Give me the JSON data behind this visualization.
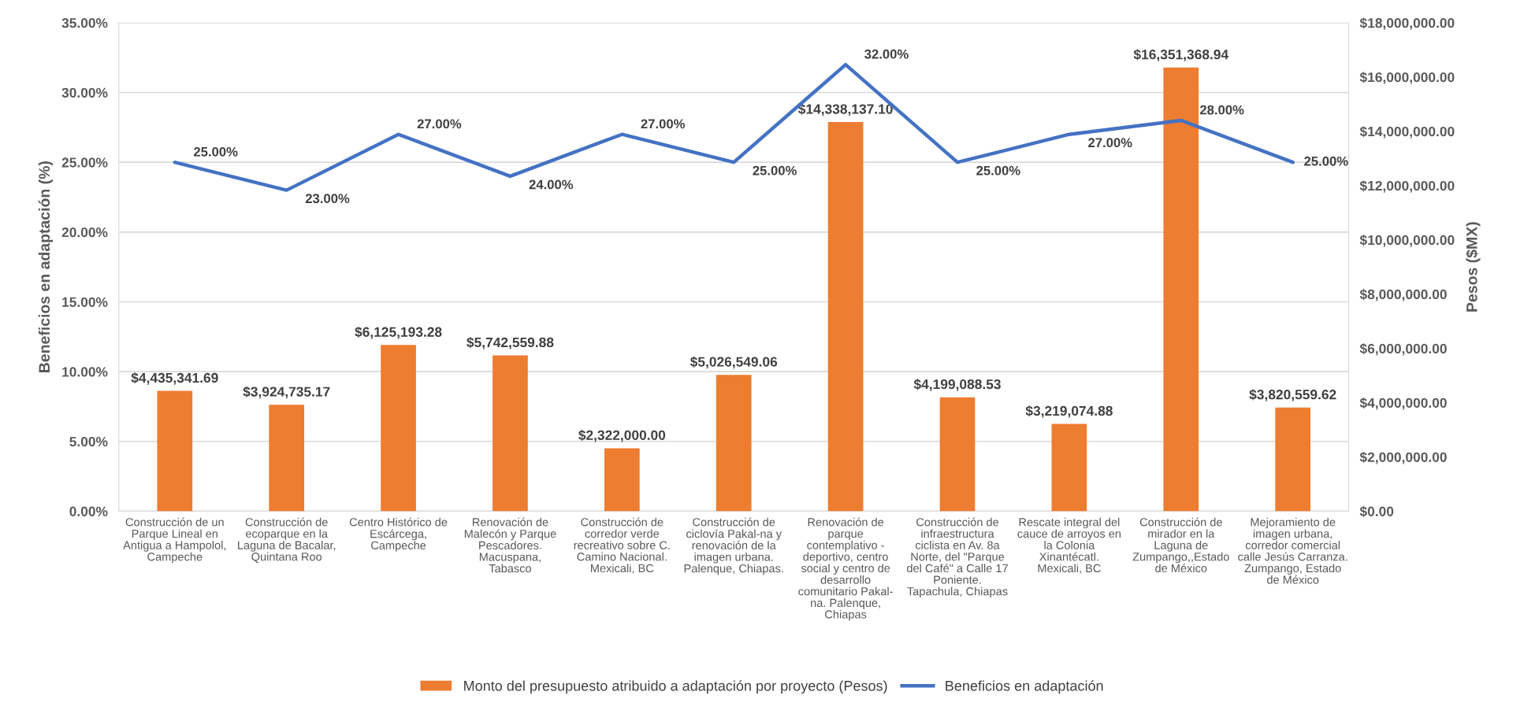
{
  "chart_data": {
    "type": "bar",
    "categories": [
      "Construcción de un\nParque Lineal en\nAntigua a Hampolol,\nCampeche",
      "Construcción de\necoparque en la\nLaguna de Bacalar,\nQuintana Roo",
      "Centro Histórico de\nEscárcega,\nCampeche",
      "Renovación de\nMalecón y Parque\nPescadores.\nMacuspana,\nTabasco",
      "Construcción de\ncorredor verde\nrecreativo sobre C.\nCamino Nacional.\nMexicali, BC",
      "Construcción de\nciclovía Pakal-na y\nrenovación de la\nimagen urbana.\nPalenque, Chiapas.",
      "Renovación de\nparque\ncontemplativo -\ndeportivo, centro\nsocial y centro de\ndesarrollo\ncomunitario Pakal-\nna. Palenque,\nChiapas",
      "Construcción de\ninfraestructura\nciclista en Av. 8a\nNorte, del \"Parque\ndel Café\" a Calle 17\nPoniente.\nTapachula, Chiapas",
      "Rescate integral del\ncauce de arroyos en\nla Colonia\nXinantécatl.\nMexicali, BC",
      "Construcción de\nmirador en la\nLaguna de\nZumpango,,Estado\nde México",
      "Mejoramiento de\nimagen urbana,\ncorredor comercial\ncalle Jesús Carranza.\nZumpango, Estado\nde México"
    ],
    "series": [
      {
        "name": "Monto del presupuesto atribuido a adaptación por proyecto (Pesos)",
        "axis": "y2",
        "color": "#ed7d31",
        "values": [
          4435341.69,
          3924735.17,
          6125193.28,
          5742559.88,
          2322000.0,
          5026549.06,
          14338137.1,
          4199088.53,
          3219074.88,
          16351368.94,
          3820559.62
        ],
        "value_labels": [
          "$4,435,341.69",
          "$3,924,735.17",
          "$6,125,193.28",
          "$5,742,559.88",
          "$2,322,000.00",
          "$5,026,549.06",
          "$14,338,137.10",
          "$4,199,088.53",
          "$3,219,074.88",
          "$16,351,368.94",
          "$3,820,559.62"
        ]
      },
      {
        "name": "Beneficios en adaptación",
        "type": "line",
        "axis": "y",
        "color": "#4472c4",
        "values": [
          25,
          23,
          27,
          24,
          27,
          25,
          32,
          25,
          27,
          28,
          25
        ],
        "value_labels": [
          "25.00%",
          "23.00%",
          "27.00%",
          "24.00%",
          "27.00%",
          "25.00%",
          "32.00%",
          "25.00%",
          "27.00%",
          "28.00%",
          "25.00%"
        ]
      }
    ],
    "ylabel": "Beneficios en adaptación (%)",
    "y2label": "Pesos ($MX)",
    "ylim": [
      0,
      35
    ],
    "yticks": [
      {
        "value": 0,
        "label": "0.00%"
      },
      {
        "value": 5,
        "label": "5.00%"
      },
      {
        "value": 10,
        "label": "10.00%"
      },
      {
        "value": 15,
        "label": "15.00%"
      },
      {
        "value": 20,
        "label": "20.00%"
      },
      {
        "value": 25,
        "label": "25.00%"
      },
      {
        "value": 30,
        "label": "30.00%"
      },
      {
        "value": 35,
        "label": "35.00%"
      }
    ],
    "y2lim": [
      0,
      18000000
    ],
    "y2ticks": [
      {
        "value": 0,
        "label": "$0.00"
      },
      {
        "value": 2000000,
        "label": "$2,000,000.00"
      },
      {
        "value": 4000000,
        "label": "$4,000,000.00"
      },
      {
        "value": 6000000,
        "label": "$6,000,000.00"
      },
      {
        "value": 8000000,
        "label": "$8,000,000.00"
      },
      {
        "value": 10000000,
        "label": "$10,000,000.00"
      },
      {
        "value": 12000000,
        "label": "$12,000,000.00"
      },
      {
        "value": 14000000,
        "label": "$14,000,000.00"
      },
      {
        "value": 16000000,
        "label": "$16,000,000.00"
      },
      {
        "value": 18000000,
        "label": "$18,000,000.00"
      }
    ],
    "grid": "y",
    "legend": "bottom"
  }
}
